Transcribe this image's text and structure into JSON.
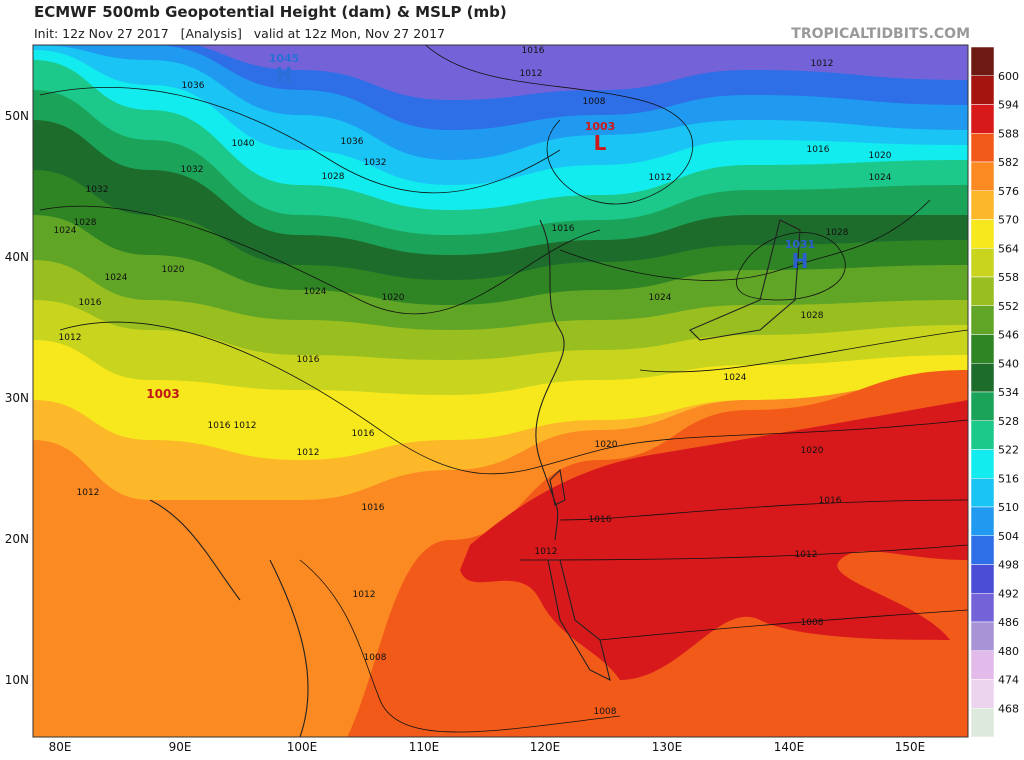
{
  "header": {
    "title": "ECMWF 500mb Geopotential Height (dam) & MSLP (mb)",
    "subtitle": "Init: 12z Nov 27 2017   [Analysis]   valid at 12z Mon, Nov 27 2017",
    "watermark": "TROPICALTIDBITS.COM"
  },
  "map": {
    "lat_labels": [
      "50N",
      "40N",
      "30N",
      "20N",
      "10N"
    ],
    "lon_labels": [
      "80E",
      "90E",
      "100E",
      "110E",
      "120E",
      "130E",
      "140E",
      "150E"
    ],
    "centers": [
      {
        "letter": "H",
        "value": 1045,
        "color": "#2a6fd6"
      },
      {
        "letter": "L",
        "value": 1003,
        "color": "#d01818"
      },
      {
        "letter": "H",
        "value": 1031,
        "color": "#2a5fd0"
      }
    ],
    "low_label": 1003,
    "isobar_labels": [
      1036,
      1040,
      1036,
      1032,
      1028,
      1032,
      1032,
      1028,
      1024,
      1024,
      1020,
      1016,
      1012,
      1024,
      1020,
      1016,
      1016,
      1012,
      1016,
      1012,
      1012,
      1016,
      1012,
      1008,
      1016,
      1012,
      1008,
      1012,
      1016,
      1012,
      1016,
      1020,
      1024,
      1028,
      1024,
      1028,
      1024,
      1020,
      1020,
      1016,
      1016,
      1012,
      1012,
      1008,
      1008
    ]
  },
  "colorbar": {
    "labels": [
      600,
      594,
      588,
      582,
      576,
      570,
      564,
      558,
      552,
      546,
      540,
      534,
      528,
      522,
      516,
      510,
      504,
      498,
      492,
      486,
      480,
      474,
      468
    ],
    "colors": [
      "#6e1a12",
      "#a5140f",
      "#d7191c",
      "#f25a1a",
      "#fb8a22",
      "#fdb82a",
      "#f6e81d",
      "#c8d41e",
      "#98be20",
      "#60a526",
      "#2f8424",
      "#1e6c2c",
      "#1ba35a",
      "#1cc98a",
      "#12ecef",
      "#1ac4f5",
      "#1f9af0",
      "#2e6ee6",
      "#4a4ed6",
      "#7463d8",
      "#a893d6",
      "#e2bbea",
      "#ecd4ef",
      "#dde9dc"
    ]
  }
}
